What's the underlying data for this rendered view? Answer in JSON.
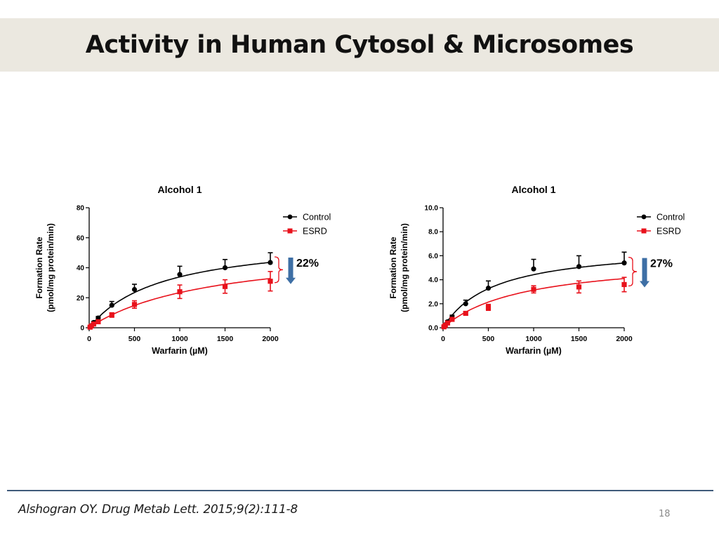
{
  "slide": {
    "title": "Activity in Human Cytosol & Microsomes",
    "citation": "Alshogran OY. Drug Metab Lett. 2015;9(2):111-8",
    "page_number": "18"
  },
  "colors": {
    "control": "#000000",
    "esrd": "#e8111b",
    "arrow": "#3e6fa5",
    "bracket": "#e8111b",
    "title_band": "#ebe8e0"
  },
  "chart_data": [
    {
      "type": "scatter",
      "title": "Alcohol 1",
      "xlabel": "Warfarin (µM)",
      "ylabel": [
        "Formation Rate",
        "(pmol/mg protein/min)"
      ],
      "xlim": [
        0,
        2000
      ],
      "ylim": [
        0,
        80
      ],
      "xticks": [
        0,
        500,
        1000,
        1500,
        2000
      ],
      "xtick_labels": [
        "0",
        "500",
        "1000",
        "1500",
        "2000"
      ],
      "yticks": [
        0,
        20,
        40,
        60,
        80
      ],
      "ytick_labels": [
        "0",
        "20",
        "40",
        "60",
        "80"
      ],
      "legend": "top-right",
      "grid": false,
      "annotation": "22%",
      "series": [
        {
          "name": "Control",
          "marker": "circle",
          "color": "#000000",
          "x": [
            10,
            25,
            50,
            100,
            250,
            500,
            1000,
            1500,
            2000
          ],
          "y": [
            0.5,
            1.5,
            3.5,
            6.5,
            15,
            25.5,
            35.5,
            40,
            43.5
          ],
          "err": [
            0.3,
            0.5,
            0.8,
            1,
            2.5,
            3.5,
            5.5,
            5.5,
            6.5
          ],
          "fit": {
            "vmax": 61,
            "km": 800
          }
        },
        {
          "name": "ESRD",
          "marker": "square",
          "color": "#e8111b",
          "x": [
            10,
            25,
            50,
            100,
            250,
            500,
            1000,
            1500,
            2000
          ],
          "y": [
            0.4,
            1.2,
            2.5,
            4,
            8.5,
            15.5,
            24,
            27.5,
            31
          ],
          "err": [
            0.2,
            0.4,
            0.6,
            1,
            1.5,
            2.5,
            4.5,
            4.5,
            6.5
          ],
          "fit": {
            "vmax": 55,
            "km": 1350
          }
        }
      ]
    },
    {
      "type": "scatter",
      "title": "Alcohol 1",
      "xlabel": "Warfarin (µM)",
      "ylabel": [
        "Formation Rate",
        "(pmol/mg protein/min)"
      ],
      "xlim": [
        0,
        2000
      ],
      "ylim": [
        0,
        10
      ],
      "xticks": [
        0,
        500,
        1000,
        1500,
        2000
      ],
      "xtick_labels": [
        "0",
        "500",
        "1000",
        "1500",
        "2000"
      ],
      "yticks": [
        0,
        2,
        4,
        6,
        8,
        10
      ],
      "ytick_labels": [
        "0.0",
        "2.0",
        "4.0",
        "6.0",
        "8.0",
        "10.0"
      ],
      "legend": "top-right",
      "grid": false,
      "annotation": "27%",
      "series": [
        {
          "name": "Control",
          "marker": "circle",
          "color": "#000000",
          "x": [
            10,
            25,
            50,
            100,
            250,
            500,
            1000,
            1500,
            2000
          ],
          "y": [
            0.1,
            0.25,
            0.5,
            0.9,
            2.0,
            3.3,
            4.9,
            5.1,
            5.4
          ],
          "err": [
            0.05,
            0.08,
            0.1,
            0.15,
            0.3,
            0.6,
            0.8,
            0.9,
            0.9
          ],
          "fit": {
            "vmax": 6.9,
            "km": 560
          }
        },
        {
          "name": "ESRD",
          "marker": "square",
          "color": "#e8111b",
          "x": [
            10,
            25,
            50,
            100,
            250,
            500,
            1000,
            1500,
            2000
          ],
          "y": [
            0.08,
            0.2,
            0.4,
            0.7,
            1.2,
            1.7,
            3.2,
            3.4,
            3.6
          ],
          "err": [
            0.04,
            0.06,
            0.08,
            0.1,
            0.15,
            0.25,
            0.3,
            0.5,
            0.6
          ],
          "fit": {
            "vmax": 5.9,
            "km": 880
          }
        }
      ]
    }
  ]
}
